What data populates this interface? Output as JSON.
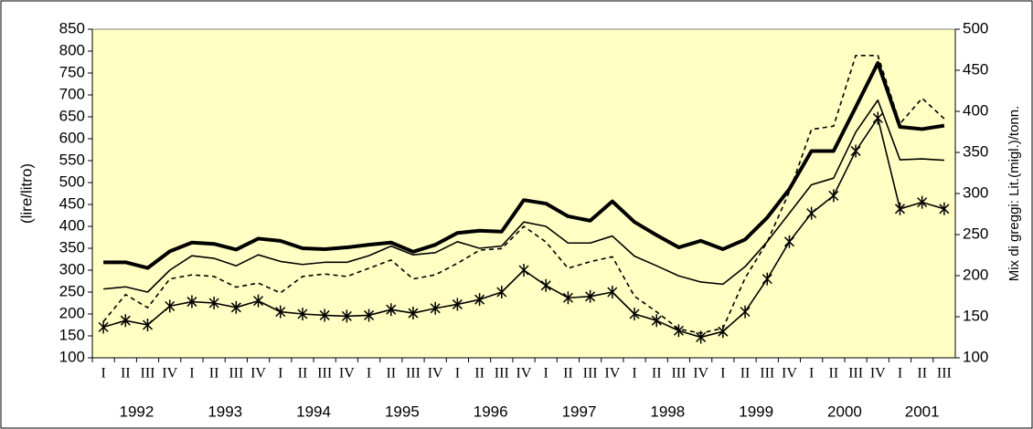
{
  "chart_data": {
    "type": "line",
    "y_label": "(lire/litro)",
    "y2_label": "Mix di greggi: Lit.(migl.)/tonn.",
    "categories": [
      "I",
      "II",
      "III",
      "IV",
      "I",
      "II",
      "III",
      "IV",
      "I",
      "II",
      "III",
      "IV",
      "I",
      "II",
      "III",
      "IV",
      "I",
      "II",
      "III",
      "IV",
      "I",
      "II",
      "III",
      "IV",
      "I",
      "II",
      "III",
      "IV",
      "I",
      "II",
      "III",
      "IV",
      "I",
      "II",
      "III",
      "IV",
      "I",
      "II",
      "III"
    ],
    "years": [
      "1992",
      "1993",
      "1994",
      "1995",
      "1996",
      "1997",
      "1998",
      "1999",
      "2000",
      "2001"
    ],
    "ylim": [
      100,
      850
    ],
    "yticks": [
      100,
      150,
      200,
      250,
      300,
      350,
      400,
      450,
      500,
      550,
      600,
      650,
      700,
      750,
      800,
      850
    ],
    "y2lim": [
      100,
      500
    ],
    "y2ticks": [
      100,
      150,
      200,
      250,
      300,
      350,
      400,
      450,
      500
    ],
    "background": "#ffffc4",
    "series": [
      {
        "color": "#000000",
        "line_width": 4,
        "values": [
          318,
          318,
          305,
          343,
          363,
          360,
          347,
          372,
          367,
          350,
          348,
          352,
          358,
          363,
          342,
          358,
          385,
          390,
          388,
          460,
          452,
          423,
          413,
          457,
          410,
          380,
          352,
          367,
          348,
          370,
          420,
          485,
          572,
          572,
          672,
          773,
          627,
          622,
          630
        ]
      },
      {
        "color": "#000000",
        "line_width": 1.6,
        "values": [
          257,
          262,
          250,
          300,
          333,
          327,
          310,
          335,
          320,
          313,
          318,
          318,
          333,
          355,
          335,
          340,
          365,
          350,
          355,
          410,
          400,
          362,
          362,
          378,
          332,
          310,
          287,
          273,
          268,
          308,
          365,
          430,
          495,
          510,
          615,
          688,
          552,
          554,
          551
        ]
      },
      {
        "color": "#000000",
        "line_width": 1.6,
        "marker": "asterisk",
        "values": [
          170,
          185,
          175,
          218,
          228,
          225,
          215,
          230,
          205,
          200,
          197,
          195,
          197,
          210,
          202,
          213,
          222,
          233,
          250,
          300,
          265,
          237,
          240,
          250,
          200,
          185,
          162,
          147,
          160,
          205,
          280,
          365,
          430,
          470,
          572,
          647,
          440,
          455,
          440
        ]
      },
      {
        "color": "#000000",
        "line_width": 1.6,
        "dashed": true,
        "axis": "y2",
        "values": [
          144,
          177,
          161,
          196,
          201,
          199,
          186,
          191,
          179,
          199,
          202,
          199,
          209,
          219,
          196,
          201,
          215,
          231,
          233,
          260,
          241,
          209,
          217,
          223,
          175,
          156,
          135,
          130,
          136,
          197,
          241,
          302,
          378,
          382,
          468,
          468,
          385,
          416,
          391
        ]
      }
    ]
  }
}
